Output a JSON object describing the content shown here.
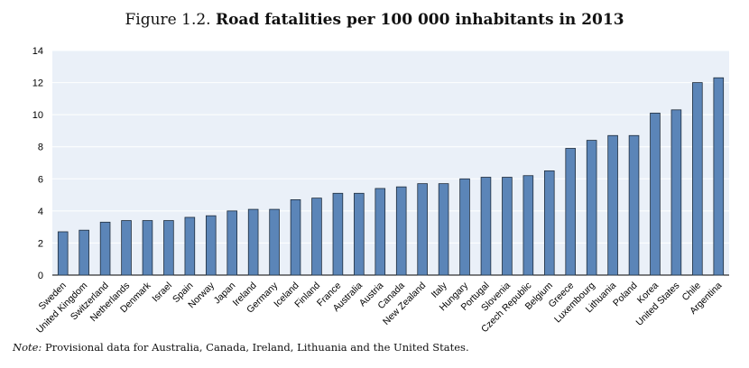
{
  "figure": {
    "number": "Figure 1.2.",
    "title": "Road fatalities per 100 000 inhabitants in 2013"
  },
  "note": {
    "label": "Note:",
    "text": "Provisional data for Australia, Canada, Ireland, Lithuania and the United States."
  },
  "colors": {
    "plot_background": "#eaf0f8",
    "bar_fill": "#5b85b8",
    "bar_stroke": "#1f2d3d",
    "gridline": "#ffffff"
  },
  "chart_data": {
    "type": "bar",
    "title": "Road fatalities per 100 000 inhabitants in 2013",
    "xlabel": "",
    "ylabel": "",
    "ylim": [
      0,
      14
    ],
    "yticks": [
      0,
      2,
      4,
      6,
      8,
      10,
      12,
      14
    ],
    "grid": true,
    "categories": [
      "Sweden",
      "United Kingdom",
      "Switzerland",
      "Netherlands",
      "Denmark",
      "Israel",
      "Spain",
      "Norway",
      "Japan",
      "Ireland",
      "Germany",
      "Iceland",
      "Finland",
      "France",
      "Australia",
      "Austria",
      "Canada",
      "New Zealand",
      "Italy",
      "Hungary",
      "Portugal",
      "Slovenia",
      "Czech Republic",
      "Belgium",
      "Greece",
      "Luxembourg",
      "Lithuania",
      "Poland",
      "Korea",
      "United States",
      "Chile",
      "Argentina"
    ],
    "values": [
      2.7,
      2.8,
      3.3,
      3.4,
      3.4,
      3.4,
      3.6,
      3.7,
      4.0,
      4.1,
      4.1,
      4.7,
      4.8,
      5.1,
      5.1,
      5.4,
      5.5,
      5.7,
      5.7,
      6.0,
      6.1,
      6.1,
      6.2,
      6.5,
      7.9,
      8.4,
      8.7,
      8.7,
      10.1,
      10.3,
      12.0,
      12.3
    ]
  }
}
